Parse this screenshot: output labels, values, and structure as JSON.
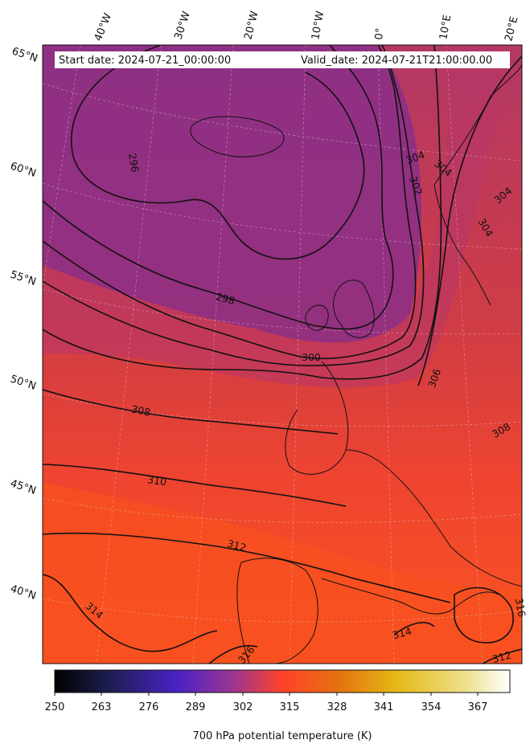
{
  "header": {
    "start_date": "Start date: 2024-07-21_00:00:00",
    "valid_date": "Valid_date: 2024-07-21T21:00:00.00"
  },
  "lon_labels": [
    "40°W",
    "30°W",
    "20°W",
    "10°W",
    "0°",
    "10°E",
    "20°E"
  ],
  "lat_labels": [
    "65°N",
    "60°N",
    "55°N",
    "50°N",
    "45°N",
    "40°N"
  ],
  "contour_labels": [
    "296",
    "298",
    "300",
    "302",
    "304",
    "304",
    "304",
    "304",
    "306",
    "308",
    "308",
    "310",
    "312",
    "312",
    "314",
    "314",
    "316",
    "316"
  ],
  "colorbar": {
    "label": "700 hPa potential temperature (K)",
    "ticks": [
      "250",
      "263",
      "276",
      "289",
      "302",
      "315",
      "328",
      "341",
      "354",
      "367"
    ],
    "range": [
      250,
      376
    ],
    "colormap": "CMRmap-like",
    "colors": [
      "#000000",
      "#232352",
      "#4b23c8",
      "#a23c90",
      "#ff4023",
      "#e67d11",
      "#e8c21a",
      "#ede27a",
      "#ffffff"
    ]
  },
  "map": {
    "projection": "Lambert conformal",
    "variable": "700 hPa potential temperature",
    "units": "K",
    "gridlines": true,
    "coastlines": true,
    "fill_colors": {
      "cold_core": "#8b2e8b",
      "mid": "#c5384d",
      "warm": "#f3452c",
      "hot": "#fa5a1a"
    }
  }
}
